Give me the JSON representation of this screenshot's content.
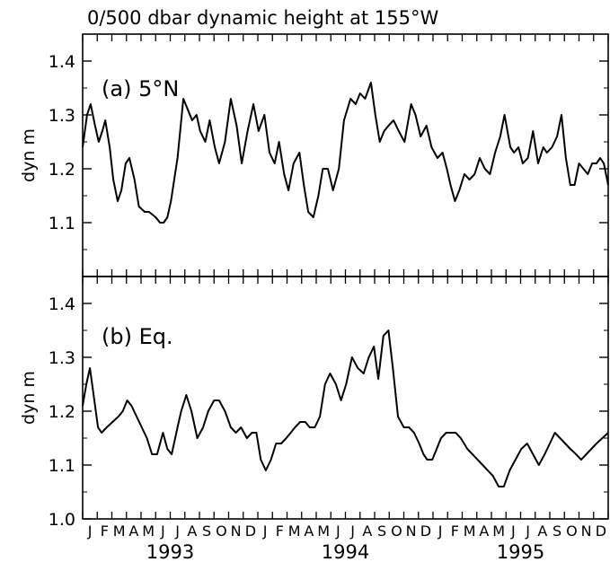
{
  "title": "0/500 dbar dynamic height at 155°W",
  "chart_data": [
    {
      "type": "line",
      "panel_label": "(a) 5°N",
      "ylabel": "dyn m",
      "ylim": [
        1.0,
        1.45
      ],
      "yticks": [
        "1.1",
        "1.2",
        "1.3",
        "1.4"
      ],
      "xlim": [
        0,
        36
      ],
      "month_labels": [
        "J",
        "F",
        "M",
        "A",
        "M",
        "J",
        "J",
        "A",
        "S",
        "O",
        "N",
        "D",
        "J",
        "F",
        "M",
        "A",
        "M",
        "J",
        "J",
        "A",
        "S",
        "O",
        "N",
        "D",
        "J",
        "F",
        "M",
        "A",
        "M",
        "J",
        "J",
        "A",
        "S",
        "O",
        "N",
        "D"
      ],
      "year_labels": [
        "1993",
        "1994",
        "1995"
      ],
      "series": [
        {
          "x": [
            0,
            0.3,
            0.55,
            0.85,
            1.1,
            1.35,
            1.55,
            1.85,
            2.1,
            2.4,
            2.65,
            2.95,
            3.2,
            3.55,
            3.85,
            4.25,
            4.55,
            5.0,
            5.3,
            5.55,
            5.8,
            6.05,
            6.5,
            6.9,
            7.2,
            7.5,
            7.8,
            8.05,
            8.4,
            8.7,
            9.05,
            9.35,
            9.75,
            10.15,
            10.55,
            10.9,
            11.3,
            11.7,
            12.05,
            12.45,
            12.8,
            13.15,
            13.45,
            13.8,
            14.1,
            14.45,
            14.85,
            15.15,
            15.45,
            15.8,
            16.15,
            16.45,
            16.8,
            17.15,
            17.55,
            17.9,
            18.35,
            18.7,
            19.0,
            19.35,
            19.75,
            20.05,
            20.35,
            20.65,
            20.95,
            21.3,
            21.65,
            22.05,
            22.5,
            22.8,
            23.15,
            23.55,
            23.9,
            24.3,
            24.65,
            24.95,
            25.2,
            25.5,
            25.8,
            26.15,
            26.5,
            26.85,
            27.2,
            27.55,
            27.9,
            28.25,
            28.6,
            28.9,
            29.3,
            29.55,
            29.85,
            30.15,
            30.5,
            30.85,
            31.2,
            31.55,
            31.8,
            32.15,
            32.5,
            32.8,
            33.1,
            33.4,
            33.7,
            34.0,
            34.3,
            34.6,
            34.9,
            35.2,
            35.45,
            35.7,
            36.0
          ],
          "y": [
            1.24,
            1.3,
            1.32,
            1.28,
            1.25,
            1.27,
            1.29,
            1.24,
            1.18,
            1.14,
            1.16,
            1.21,
            1.22,
            1.18,
            1.13,
            1.12,
            1.12,
            1.11,
            1.1,
            1.1,
            1.11,
            1.14,
            1.22,
            1.33,
            1.31,
            1.29,
            1.3,
            1.27,
            1.25,
            1.29,
            1.24,
            1.21,
            1.25,
            1.33,
            1.28,
            1.21,
            1.27,
            1.32,
            1.27,
            1.3,
            1.23,
            1.21,
            1.25,
            1.19,
            1.16,
            1.21,
            1.23,
            1.17,
            1.12,
            1.11,
            1.15,
            1.2,
            1.2,
            1.16,
            1.2,
            1.29,
            1.33,
            1.32,
            1.34,
            1.33,
            1.36,
            1.3,
            1.25,
            1.27,
            1.28,
            1.29,
            1.27,
            1.25,
            1.32,
            1.3,
            1.26,
            1.28,
            1.24,
            1.22,
            1.23,
            1.2,
            1.17,
            1.14,
            1.16,
            1.19,
            1.18,
            1.19,
            1.22,
            1.2,
            1.19,
            1.23,
            1.26,
            1.3,
            1.24,
            1.23,
            1.24,
            1.21,
            1.22,
            1.27,
            1.21,
            1.24,
            1.23,
            1.24,
            1.26,
            1.3,
            1.22,
            1.17,
            1.17,
            1.21,
            1.2,
            1.19,
            1.21,
            1.21,
            1.22,
            1.21,
            1.17
          ]
        }
      ]
    },
    {
      "type": "line",
      "panel_label": "(b) Eq.",
      "ylabel": "dyn m",
      "ylim": [
        1.0,
        1.45
      ],
      "yticks": [
        "1.0",
        "1.1",
        "1.2",
        "1.3",
        "1.4"
      ],
      "xlim": [
        0,
        36
      ],
      "month_labels": [
        "J",
        "F",
        "M",
        "A",
        "M",
        "J",
        "J",
        "A",
        "S",
        "O",
        "N",
        "D",
        "J",
        "F",
        "M",
        "A",
        "M",
        "J",
        "J",
        "A",
        "S",
        "O",
        "N",
        "D",
        "J",
        "F",
        "M",
        "A",
        "M",
        "J",
        "J",
        "A",
        "S",
        "O",
        "N",
        "D"
      ],
      "year_labels": [
        "1993",
        "1994",
        "1995"
      ],
      "series": [
        {
          "x": [
            0,
            0.25,
            0.5,
            0.75,
            1.05,
            1.3,
            1.65,
            2.05,
            2.45,
            2.75,
            3.05,
            3.35,
            3.7,
            4.05,
            4.4,
            4.75,
            5.1,
            5.5,
            5.8,
            6.1,
            6.5,
            6.75,
            7.1,
            7.45,
            7.85,
            8.25,
            8.6,
            9.0,
            9.35,
            9.75,
            10.15,
            10.5,
            10.85,
            11.25,
            11.6,
            11.9,
            12.2,
            12.55,
            12.9,
            13.25,
            13.6,
            13.95,
            14.25,
            14.55,
            14.9,
            15.25,
            15.55,
            15.9,
            16.25,
            16.6,
            16.95,
            17.35,
            17.7,
            18.05,
            18.45,
            18.85,
            19.25,
            19.6,
            19.95,
            20.25,
            20.6,
            20.95,
            21.25,
            21.6,
            22.0,
            22.35,
            22.7,
            23.05,
            23.35,
            23.6,
            23.95,
            24.25,
            24.55,
            24.9,
            25.2,
            25.55,
            25.9,
            26.35,
            26.7,
            27.05,
            27.4,
            27.75,
            28.1,
            28.5,
            28.85,
            29.25,
            29.65,
            30.05,
            30.45,
            30.85,
            31.25,
            31.65,
            32.0,
            32.35,
            32.7,
            33.05,
            33.4,
            33.8,
            34.15,
            34.5,
            34.85,
            35.2,
            35.6,
            36.0
          ],
          "y": [
            1.21,
            1.25,
            1.28,
            1.23,
            1.17,
            1.16,
            1.17,
            1.18,
            1.19,
            1.2,
            1.22,
            1.21,
            1.19,
            1.17,
            1.15,
            1.12,
            1.12,
            1.16,
            1.13,
            1.12,
            1.17,
            1.2,
            1.23,
            1.2,
            1.15,
            1.17,
            1.2,
            1.22,
            1.22,
            1.2,
            1.17,
            1.16,
            1.17,
            1.15,
            1.16,
            1.16,
            1.11,
            1.09,
            1.11,
            1.14,
            1.14,
            1.15,
            1.16,
            1.17,
            1.18,
            1.18,
            1.17,
            1.17,
            1.19,
            1.25,
            1.27,
            1.25,
            1.22,
            1.25,
            1.3,
            1.28,
            1.27,
            1.3,
            1.32,
            1.26,
            1.34,
            1.35,
            1.28,
            1.19,
            1.17,
            1.17,
            1.16,
            1.14,
            1.12,
            1.11,
            1.11,
            1.13,
            1.15,
            1.16,
            1.16,
            1.16,
            1.15,
            1.13,
            1.12,
            1.11,
            1.1,
            1.09,
            1.08,
            1.06,
            1.06,
            1.09,
            1.11,
            1.13,
            1.14,
            1.12,
            1.1,
            1.12,
            1.14,
            1.16,
            1.15,
            1.14,
            1.13,
            1.12,
            1.11,
            1.12,
            1.13,
            1.14,
            1.15,
            1.16
          ]
        }
      ]
    }
  ]
}
